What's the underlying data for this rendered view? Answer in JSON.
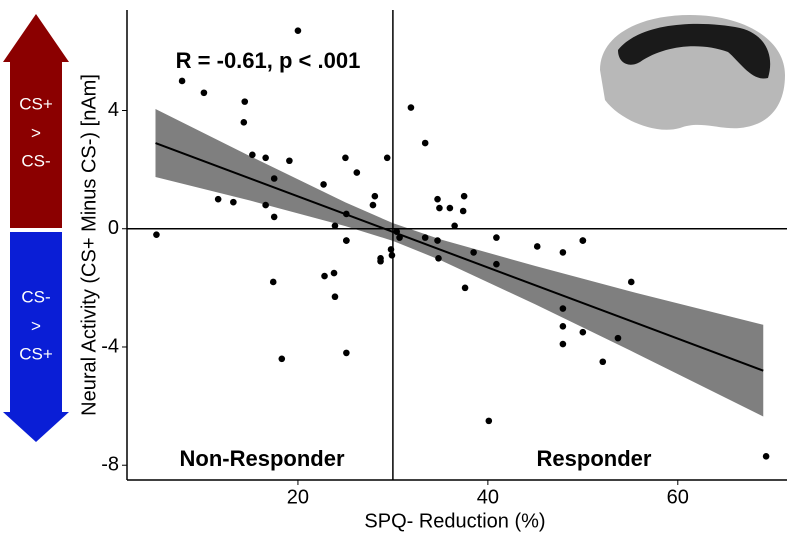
{
  "chart_data": {
    "type": "scatter",
    "annotation": "R = -0.61, p < .001",
    "ylabel": "Neural Activity (CS+ Minus CS-) [nAm]",
    "xlabel": "SPQ- Reduction (%)",
    "region_labels": [
      "Non-Responder",
      "Responder"
    ],
    "arrow_labels": [
      [
        "CS+",
        ">",
        "CS-"
      ],
      [
        "CS-",
        ">",
        "CS+"
      ]
    ],
    "xlim": [
      2,
      71.5
    ],
    "ylim": [
      -8.5,
      7.4
    ],
    "xticks": [
      20,
      40,
      60
    ],
    "yticks": [
      -8,
      -4,
      0,
      4
    ],
    "vline": 30,
    "hline": 0,
    "color": "#000000",
    "band_color": "#7f7f7f",
    "x": [
      5.1,
      7.8,
      10.1,
      14.4,
      14.3,
      11.6,
      13.2,
      15.2,
      16.6,
      16.6,
      17.5,
      17.5,
      17.4,
      19.1,
      20.0,
      18.3,
      22.7,
      22.8,
      23.8,
      23.9,
      23.9,
      25.0,
      26.2,
      25.1,
      25.1,
      25.1,
      25.1,
      28.1,
      27.9,
      28.7,
      28.7,
      29.4,
      29.8,
      29.9,
      30.4,
      30.7,
      31.9,
      33.4,
      33.4,
      34.7,
      34.9,
      34.7,
      34.8,
      36.0,
      36.5,
      37.5,
      37.4,
      37.6,
      38.5,
      40.9,
      40.9,
      40.1,
      45.2,
      47.9,
      50.0,
      50.0,
      47.9,
      47.9,
      47.9,
      50.0,
      52.1,
      53.7,
      55.1,
      69.3
    ],
    "values": [
      -0.2,
      5.0,
      4.6,
      4.3,
      3.6,
      1.0,
      0.9,
      2.5,
      2.4,
      0.8,
      1.7,
      0.4,
      -1.8,
      2.3,
      6.7,
      -4.4,
      1.5,
      -1.6,
      -1.5,
      0.1,
      -2.3,
      2.4,
      1.9,
      0.5,
      -0.4,
      -0.4,
      -4.2,
      1.1,
      0.8,
      -1.0,
      -1.1,
      2.4,
      -0.7,
      -0.9,
      -0.1,
      -0.3,
      4.1,
      2.9,
      -0.3,
      1.0,
      0.7,
      -0.4,
      -1.0,
      0.7,
      0.1,
      1.1,
      0.6,
      -2.0,
      -0.8,
      -0.3,
      -1.2,
      -6.5,
      -0.6,
      -0.8,
      -0.4,
      -0.4,
      -2.7,
      -3.3,
      -3.9,
      -3.5,
      -4.5,
      -3.7,
      -1.8,
      -7.7
    ],
    "fit": {
      "x": [
        5,
        69
      ],
      "y": [
        2.9,
        -4.8
      ]
    },
    "band": {
      "x": [
        5,
        15,
        25,
        30,
        35,
        45,
        55,
        69
      ],
      "upper": [
        4.05,
        2.45,
        0.89,
        0.19,
        -0.36,
        -1.26,
        -2.12,
        -3.25
      ],
      "lower": [
        1.75,
        0.95,
        0.09,
        -0.41,
        -1.06,
        -2.56,
        -4.12,
        -6.35
      ]
    }
  }
}
